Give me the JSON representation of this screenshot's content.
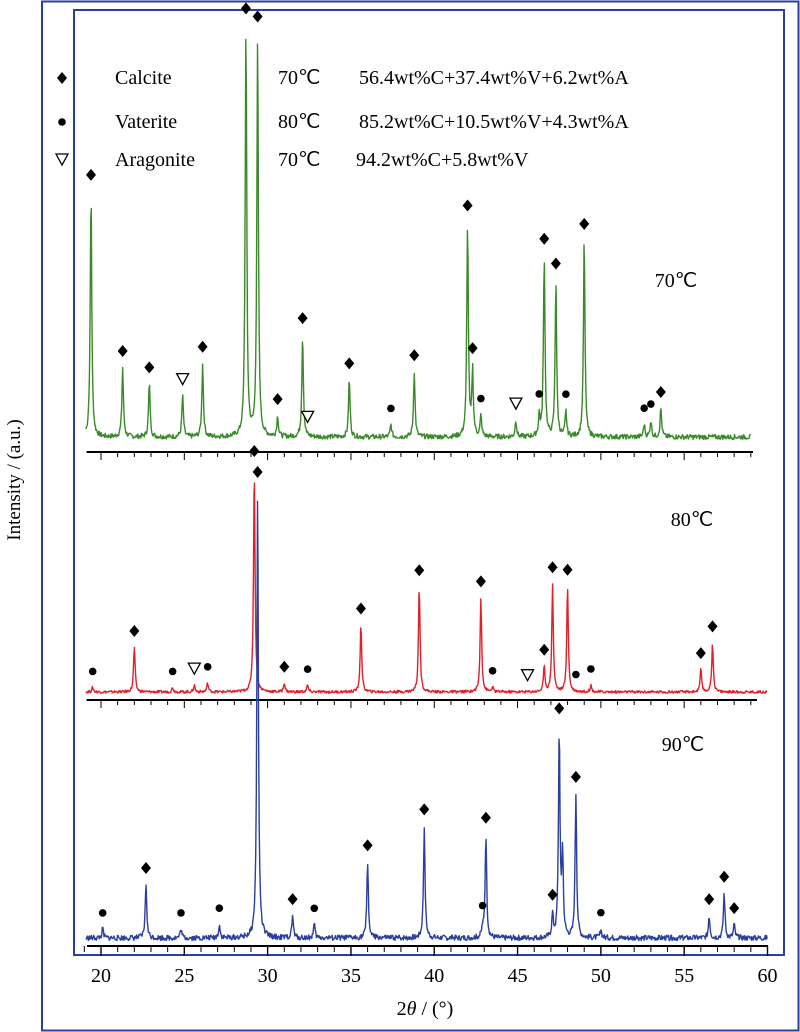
{
  "chart_data": {
    "type": "line",
    "xlabel_prefix": "2",
    "xlabel_theta": "θ",
    "xlabel_suffix": " / (°)",
    "ylabel": "Intensity / (a.u.)",
    "xlim": [
      19,
      60
    ],
    "xticks": [
      20,
      25,
      30,
      35,
      40,
      45,
      50,
      55,
      60
    ],
    "legend": {
      "placement": "top-left",
      "items": [
        {
          "marker": "diamond",
          "label": "Calcite",
          "temp": "70℃",
          "composition": "56.4wt%C+37.4wt%V+6.2wt%A"
        },
        {
          "marker": "circle",
          "label": "Vaterite",
          "temp": "80℃",
          "composition": "85.2wt%C+10.5wt%V+4.3wt%A"
        },
        {
          "marker": "triangle",
          "label": "Aragonite",
          "temp": "70℃",
          "composition": "94.2wt%C+5.8wt%V"
        }
      ]
    },
    "series": [
      {
        "name": "70℃",
        "color": "#3a8a2a",
        "xlim": [
          19,
          59
        ],
        "peaks": [
          [
            19.4,
            0.6
          ],
          [
            21.3,
            0.17
          ],
          [
            22.9,
            0.13
          ],
          [
            24.9,
            0.1
          ],
          [
            26.1,
            0.18
          ],
          [
            28.7,
            1.0
          ],
          [
            29.4,
            0.98
          ],
          [
            30.6,
            0.05
          ],
          [
            32.1,
            0.25
          ],
          [
            34.9,
            0.14
          ],
          [
            37.4,
            0.03
          ],
          [
            38.8,
            0.16
          ],
          [
            42.0,
            0.52
          ],
          [
            42.3,
            0.16
          ],
          [
            42.8,
            0.05
          ],
          [
            44.9,
            0.04
          ],
          [
            46.3,
            0.05
          ],
          [
            46.6,
            0.44
          ],
          [
            47.3,
            0.38
          ],
          [
            47.9,
            0.06
          ],
          [
            49.0,
            0.48
          ],
          [
            52.6,
            0.03
          ],
          [
            53.0,
            0.04
          ],
          [
            53.6,
            0.07
          ]
        ],
        "markers": [
          {
            "type": "diamond",
            "x": 19.4
          },
          {
            "type": "diamond",
            "x": 21.3
          },
          {
            "type": "diamond",
            "x": 22.9
          },
          {
            "type": "diamond",
            "x": 26.1
          },
          {
            "type": "diamond",
            "x": 28.7
          },
          {
            "type": "diamond",
            "x": 29.4
          },
          {
            "type": "diamond",
            "x": 30.6
          },
          {
            "type": "diamond",
            "x": 32.1
          },
          {
            "type": "diamond",
            "x": 34.9
          },
          {
            "type": "diamond",
            "x": 38.8
          },
          {
            "type": "diamond",
            "x": 42.0
          },
          {
            "type": "diamond",
            "x": 42.3
          },
          {
            "type": "diamond",
            "x": 46.6
          },
          {
            "type": "diamond",
            "x": 47.3
          },
          {
            "type": "diamond",
            "x": 49.0
          },
          {
            "type": "diamond",
            "x": 53.6
          },
          {
            "type": "circle",
            "x": 37.4
          },
          {
            "type": "circle",
            "x": 42.8
          },
          {
            "type": "circle",
            "x": 46.3
          },
          {
            "type": "circle",
            "x": 47.9
          },
          {
            "type": "circle",
            "x": 52.6
          },
          {
            "type": "circle",
            "x": 53.0
          },
          {
            "type": "triangle",
            "x": 24.9
          },
          {
            "type": "triangle",
            "x": 32.4
          },
          {
            "type": "triangle",
            "x": 44.9
          }
        ]
      },
      {
        "name": "80℃",
        "color": "#e0202a",
        "xlim": [
          19,
          60
        ],
        "peaks": [
          [
            19.5,
            0.02
          ],
          [
            22.0,
            0.2
          ],
          [
            24.3,
            0.02
          ],
          [
            25.6,
            0.03
          ],
          [
            26.4,
            0.04
          ],
          [
            29.2,
            1.0
          ],
          [
            31.0,
            0.04
          ],
          [
            32.4,
            0.03
          ],
          [
            35.6,
            0.3
          ],
          [
            39.1,
            0.47
          ],
          [
            42.8,
            0.42
          ],
          [
            43.5,
            0.02
          ],
          [
            46.6,
            0.11
          ],
          [
            47.1,
            0.48
          ],
          [
            48.0,
            0.47
          ],
          [
            49.4,
            0.03
          ],
          [
            56.0,
            0.1
          ],
          [
            56.7,
            0.22
          ]
        ],
        "markers": [
          {
            "type": "diamond",
            "x": 22.0
          },
          {
            "type": "diamond",
            "x": 29.2
          },
          {
            "type": "diamond",
            "x": 31.0
          },
          {
            "type": "diamond",
            "x": 35.6
          },
          {
            "type": "diamond",
            "x": 39.1
          },
          {
            "type": "diamond",
            "x": 42.8
          },
          {
            "type": "diamond",
            "x": 46.6
          },
          {
            "type": "diamond",
            "x": 47.1
          },
          {
            "type": "diamond",
            "x": 48.0
          },
          {
            "type": "diamond",
            "x": 56.0
          },
          {
            "type": "diamond",
            "x": 56.7
          },
          {
            "type": "circle",
            "x": 19.5
          },
          {
            "type": "circle",
            "x": 24.3
          },
          {
            "type": "circle",
            "x": 26.4
          },
          {
            "type": "circle",
            "x": 32.4
          },
          {
            "type": "circle",
            "x": 43.5
          },
          {
            "type": "circle",
            "x": 48.5
          },
          {
            "type": "circle",
            "x": 49.4
          },
          {
            "type": "triangle",
            "x": 25.6
          },
          {
            "type": "triangle",
            "x": 45.6
          }
        ]
      },
      {
        "name": "90℃",
        "color": "#2a3f9e",
        "xlim": [
          19,
          60
        ],
        "peaks": [
          [
            20.1,
            0.02
          ],
          [
            22.7,
            0.12
          ],
          [
            24.8,
            0.02
          ],
          [
            27.1,
            0.03
          ],
          [
            29.4,
            1.0
          ],
          [
            31.5,
            0.05
          ],
          [
            32.8,
            0.03
          ],
          [
            36.0,
            0.17
          ],
          [
            39.4,
            0.25
          ],
          [
            42.9,
            0.02
          ],
          [
            43.1,
            0.23
          ],
          [
            47.1,
            0.05
          ],
          [
            47.5,
            0.46
          ],
          [
            47.7,
            0.18
          ],
          [
            48.5,
            0.32
          ],
          [
            50.0,
            0.02
          ],
          [
            56.5,
            0.05
          ],
          [
            57.4,
            0.1
          ],
          [
            58.0,
            0.03
          ]
        ],
        "markers": [
          {
            "type": "diamond",
            "x": 22.7
          },
          {
            "type": "diamond",
            "x": 29.4
          },
          {
            "type": "diamond",
            "x": 31.5
          },
          {
            "type": "diamond",
            "x": 36.0
          },
          {
            "type": "diamond",
            "x": 39.4
          },
          {
            "type": "diamond",
            "x": 43.1
          },
          {
            "type": "diamond",
            "x": 47.1
          },
          {
            "type": "diamond",
            "x": 47.5
          },
          {
            "type": "diamond",
            "x": 48.5
          },
          {
            "type": "diamond",
            "x": 56.5
          },
          {
            "type": "diamond",
            "x": 57.4
          },
          {
            "type": "diamond",
            "x": 58.0
          },
          {
            "type": "circle",
            "x": 20.1
          },
          {
            "type": "circle",
            "x": 24.8
          },
          {
            "type": "circle",
            "x": 27.1
          },
          {
            "type": "circle",
            "x": 32.8
          },
          {
            "type": "circle",
            "x": 42.9
          },
          {
            "type": "circle",
            "x": 50.0
          }
        ]
      }
    ]
  }
}
